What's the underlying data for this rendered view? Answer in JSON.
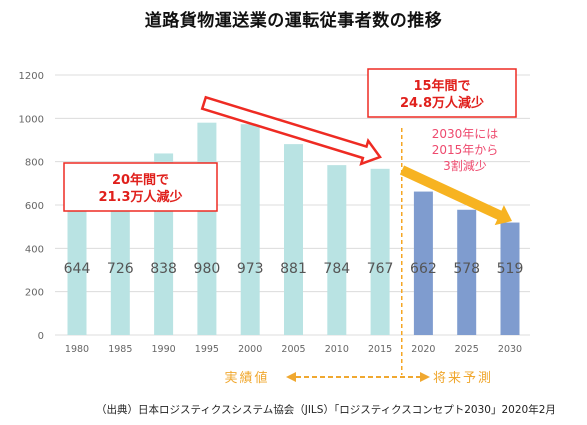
{
  "title": "道路貨物運送業の運転従事者数の推移",
  "source": "（出典）日本ロジスティクスシステム協会（JILS）「ロジスティクスコンセプト2030」2020年2月",
  "chart_data": {
    "type": "bar",
    "title": "道路貨物運送業の運転従事者数の推移",
    "categories": [
      "1980",
      "1985",
      "1990",
      "1995",
      "2000",
      "2005",
      "2010",
      "2015",
      "2020",
      "2025",
      "2030"
    ],
    "values": [
      644,
      726,
      838,
      980,
      973,
      881,
      784,
      767,
      662,
      578,
      519
    ],
    "ylim": [
      0,
      1200
    ],
    "yticks": [
      0,
      200,
      400,
      600,
      800,
      1000,
      1200
    ],
    "grid": true,
    "colors": {
      "actual": "#b9e3e3",
      "forecast": "#7f9ccf",
      "arrow1": "#ee2b23",
      "arrow2": "#f7b321",
      "divider": "#f5a623",
      "callout_text": "#e0201c",
      "callout3_text": "#ee4a6e",
      "range_text": "#f0a830"
    },
    "annotations": {
      "callout_left": [
        "20年間で",
        "21.3万人減少"
      ],
      "callout_right": [
        "15年間で",
        "24.8万人減少"
      ],
      "callout_forecast": [
        "2030年には",
        "2015年から",
        "3割減少"
      ]
    },
    "ranges": {
      "actual": "実績値",
      "forecast": "将来予測"
    }
  }
}
